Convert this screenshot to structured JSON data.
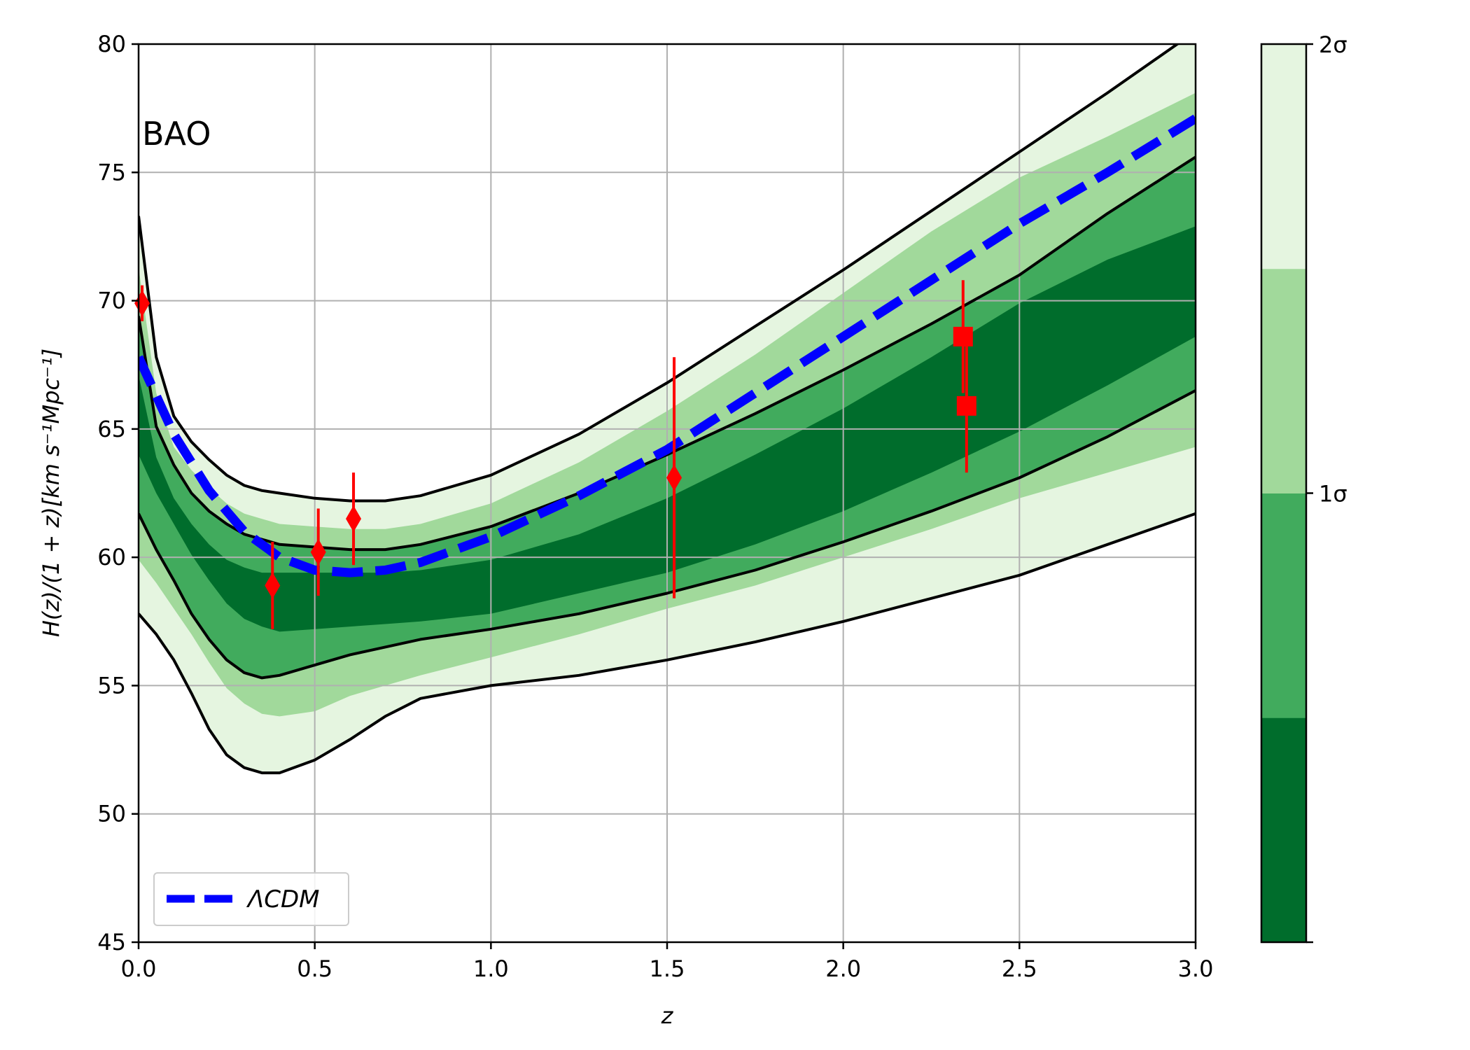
{
  "chart_data": {
    "type": "area",
    "xlabel": "z",
    "ylabel": "H(z)/(1 + z)[km s⁻¹Mpc⁻¹]",
    "xlim": [
      0.0,
      3.0
    ],
    "ylim": [
      45,
      80
    ],
    "x_ticks": [
      "0.0",
      "0.5",
      "1.0",
      "1.5",
      "2.0",
      "2.5",
      "3.0"
    ],
    "y_ticks": [
      "45",
      "50",
      "55",
      "60",
      "65",
      "70",
      "75",
      "80"
    ],
    "grid": true,
    "annotation": "BAO",
    "legend": {
      "placement": "lower-left",
      "label": "ΛCDM"
    },
    "colorbar": {
      "tick_labels": [
        "1σ",
        "2σ"
      ],
      "level_colors": [
        "#006d2c",
        "#41ab5d",
        "#a1d99b",
        "#e5f5e0"
      ]
    },
    "band_x": [
      0.0,
      0.05,
      0.1,
      0.15,
      0.2,
      0.25,
      0.3,
      0.35,
      0.4,
      0.5,
      0.6,
      0.7,
      0.8,
      1.0,
      1.25,
      1.5,
      1.75,
      2.0,
      2.25,
      2.5,
      2.75,
      3.0
    ],
    "bands": [
      {
        "level": "2σ",
        "color": "#e5f5e0",
        "upper": [
          73.3,
          67.8,
          65.5,
          64.5,
          63.8,
          63.2,
          62.8,
          62.6,
          62.5,
          62.3,
          62.2,
          62.2,
          62.4,
          63.2,
          64.8,
          66.8,
          69.0,
          71.2,
          73.5,
          75.8,
          78.1,
          80.5
        ],
        "lower": [
          57.8,
          57.0,
          56.0,
          54.7,
          53.3,
          52.3,
          51.8,
          51.6,
          51.6,
          52.1,
          52.9,
          53.8,
          54.5,
          55.0,
          55.4,
          56.0,
          56.7,
          57.5,
          58.4,
          59.3,
          60.5,
          61.7
        ]
      },
      {
        "level": "inner 2σ",
        "color": "#a1d99b",
        "upper": [
          71.3,
          66.4,
          64.3,
          63.4,
          62.7,
          62.1,
          61.7,
          61.5,
          61.3,
          61.2,
          61.1,
          61.1,
          61.3,
          62.1,
          63.7,
          65.7,
          67.9,
          70.3,
          72.7,
          74.8,
          76.4,
          78.1
        ],
        "lower": [
          59.9,
          59.0,
          58.0,
          57.0,
          55.9,
          54.9,
          54.3,
          53.9,
          53.8,
          54.0,
          54.6,
          55.0,
          55.4,
          56.1,
          57.0,
          58.0,
          58.9,
          60.0,
          61.1,
          62.3,
          63.3,
          64.3
        ]
      },
      {
        "level": "1σ",
        "color": "#41ab5d",
        "upper": [
          69.4,
          65.1,
          63.6,
          62.5,
          61.8,
          61.3,
          60.9,
          60.7,
          60.5,
          60.4,
          60.3,
          60.3,
          60.5,
          61.2,
          62.5,
          64.0,
          65.6,
          67.3,
          69.1,
          71.0,
          73.4,
          75.6
        ],
        "lower": [
          61.7,
          60.3,
          59.1,
          57.8,
          56.8,
          56.0,
          55.5,
          55.3,
          55.4,
          55.8,
          56.2,
          56.5,
          56.8,
          57.2,
          57.8,
          58.6,
          59.5,
          60.6,
          61.8,
          63.1,
          64.7,
          66.5
        ]
      },
      {
        "level": "inner 1σ",
        "color": "#006d2c",
        "upper": [
          67.1,
          63.9,
          62.3,
          61.3,
          60.5,
          59.9,
          59.6,
          59.4,
          59.4,
          59.4,
          59.4,
          59.4,
          59.5,
          59.9,
          60.9,
          62.3,
          64.0,
          65.8,
          67.8,
          69.9,
          71.6,
          72.9
        ],
        "lower": [
          64.0,
          62.5,
          61.3,
          60.1,
          59.1,
          58.2,
          57.6,
          57.3,
          57.1,
          57.2,
          57.3,
          57.4,
          57.5,
          57.8,
          58.6,
          59.4,
          60.5,
          61.8,
          63.3,
          64.9,
          66.7,
          68.6
        ]
      }
    ],
    "contour_lines": [
      {
        "name": "2σ upper",
        "y": [
          73.3,
          67.8,
          65.5,
          64.5,
          63.8,
          63.2,
          62.8,
          62.6,
          62.5,
          62.3,
          62.2,
          62.2,
          62.4,
          63.2,
          64.8,
          66.8,
          69.0,
          71.2,
          73.5,
          75.8,
          78.1,
          80.5
        ]
      },
      {
        "name": "1σ upper",
        "y": [
          69.4,
          65.1,
          63.6,
          62.5,
          61.8,
          61.3,
          60.9,
          60.7,
          60.5,
          60.4,
          60.3,
          60.3,
          60.5,
          61.2,
          62.5,
          64.0,
          65.6,
          67.3,
          69.1,
          71.0,
          73.4,
          75.6
        ]
      },
      {
        "name": "1σ lower",
        "y": [
          61.7,
          60.3,
          59.1,
          57.8,
          56.8,
          56.0,
          55.5,
          55.3,
          55.4,
          55.8,
          56.2,
          56.5,
          56.8,
          57.2,
          57.8,
          58.6,
          59.5,
          60.6,
          61.8,
          63.1,
          64.7,
          66.5
        ]
      },
      {
        "name": "2σ lower",
        "y": [
          57.8,
          57.0,
          56.0,
          54.7,
          53.3,
          52.3,
          51.8,
          51.6,
          51.6,
          52.1,
          52.9,
          53.8,
          54.5,
          55.0,
          55.4,
          56.0,
          56.7,
          57.5,
          58.4,
          59.3,
          60.5,
          61.7
        ]
      }
    ],
    "series": [
      {
        "name": "ΛCDM",
        "color": "#0000ff",
        "style": "dashed",
        "x": [
          0.0,
          0.1,
          0.2,
          0.3,
          0.4,
          0.5,
          0.6,
          0.7,
          0.8,
          1.0,
          1.25,
          1.5,
          1.75,
          2.0,
          2.25,
          2.5,
          2.75,
          3.0
        ],
        "y": [
          67.8,
          64.8,
          62.6,
          61.0,
          60.0,
          59.5,
          59.4,
          59.5,
          59.8,
          60.8,
          62.4,
          64.2,
          66.4,
          68.6,
          70.8,
          73.0,
          75.0,
          77.1
        ]
      }
    ],
    "data_points": [
      {
        "z": 0.01,
        "H": 69.9,
        "err": 0.7,
        "marker": "diamond"
      },
      {
        "z": 0.38,
        "H": 58.9,
        "err": 1.7,
        "marker": "diamond"
      },
      {
        "z": 0.51,
        "H": 60.2,
        "err": 1.7,
        "marker": "diamond"
      },
      {
        "z": 0.61,
        "H": 61.5,
        "err": 1.8,
        "marker": "diamond"
      },
      {
        "z": 1.52,
        "H": 63.1,
        "err": 4.7,
        "marker": "diamond"
      },
      {
        "z": 2.34,
        "H": 68.6,
        "err": 2.2,
        "marker": "square"
      },
      {
        "z": 2.35,
        "H": 65.9,
        "err": 2.6,
        "marker": "square"
      }
    ],
    "point_color": "#ff0000"
  }
}
